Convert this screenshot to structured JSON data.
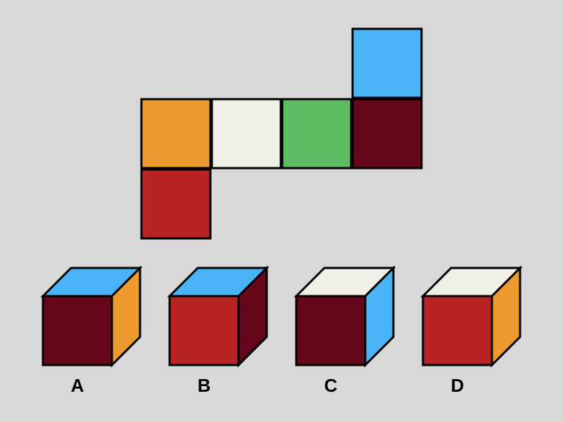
{
  "colors": {
    "background": "#d9d9d9",
    "orange": "#ed9a2f",
    "cream": "#f0f0e6",
    "green": "#5cbd62",
    "maroon": "#66061a",
    "blue": "#4bb4f7",
    "red": "#b82424"
  },
  "net": {
    "faces": [
      "orange",
      "cream",
      "green",
      "maroon",
      "blue",
      "red"
    ]
  },
  "options": [
    {
      "label": "A",
      "front": "maroon",
      "top": "blue",
      "side": "orange"
    },
    {
      "label": "B",
      "front": "red",
      "top": "blue",
      "side": "maroon"
    },
    {
      "label": "C",
      "front": "maroon",
      "top": "cream",
      "side": "blue"
    },
    {
      "label": "D",
      "front": "red",
      "top": "cream",
      "side": "orange"
    }
  ]
}
